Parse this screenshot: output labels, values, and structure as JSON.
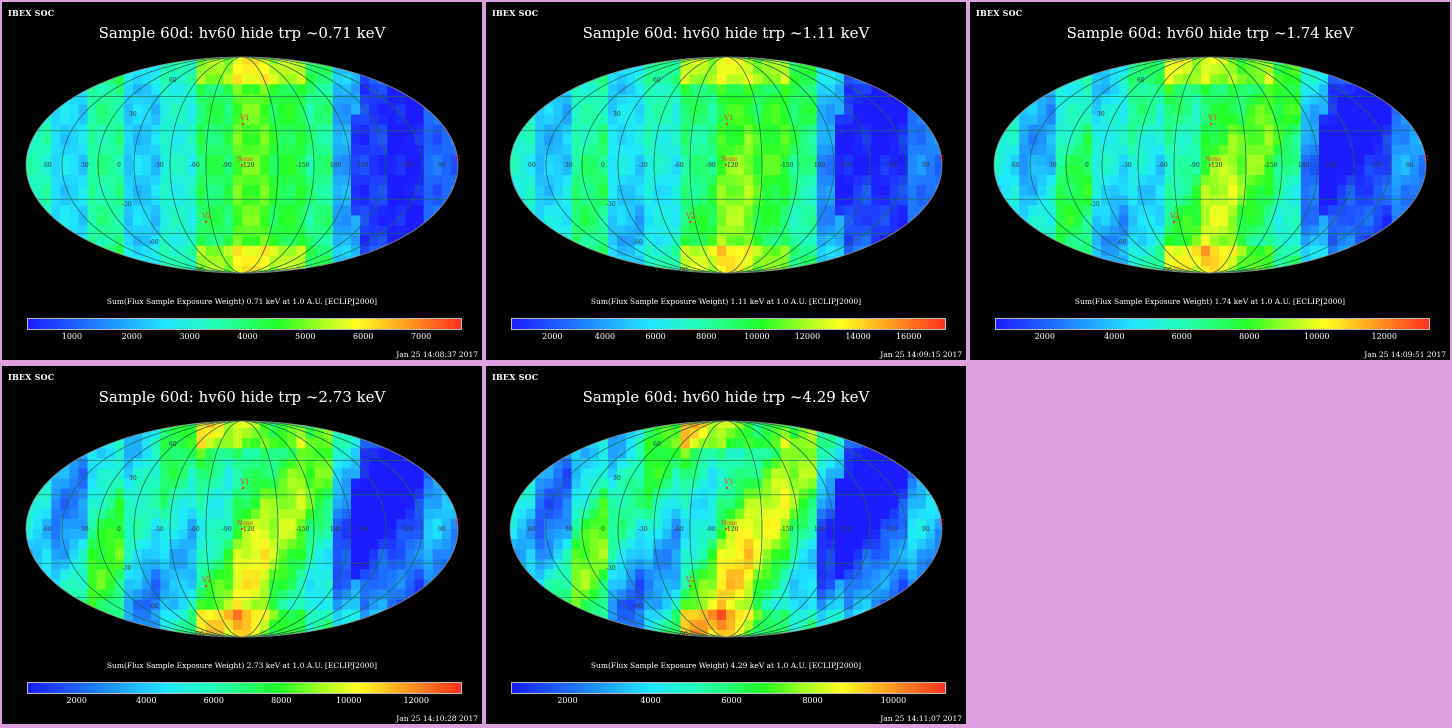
{
  "colors": {
    "background": "#dd9fdd",
    "panel": "#000000",
    "label_red": "#ff3333"
  },
  "panels": [
    {
      "brand": "IBEX SOC",
      "title": "Sample 60d: hv60 hide trp ~0.71 keV",
      "caption": "Sum(Flux Sample Exposure Weight)  0.71 keV at 1.0 A.U. [ECLIPJ2000]",
      "timestamp": "Jan 25 14:08:37 2017",
      "ticks": [
        "1000",
        "2000",
        "3000",
        "4000",
        "5000",
        "6000",
        "7000"
      ]
    },
    {
      "brand": "IBEX SOC",
      "title": "Sample 60d: hv60 hide trp ~1.11 keV",
      "caption": "Sum(Flux Sample Exposure Weight)  1.11 keV at 1.0 A.U. [ECLIPJ2000]",
      "timestamp": "Jan 25 14:09:15 2017",
      "ticks": [
        "2000",
        "4000",
        "6000",
        "8000",
        "10000",
        "12000",
        "14000",
        "16000"
      ]
    },
    {
      "brand": "IBEX SOC",
      "title": "Sample 60d: hv60 hide trp ~1.74 keV",
      "caption": "Sum(Flux Sample Exposure Weight)  1.74 keV at 1.0 A.U. [ECLIPJ2000]",
      "timestamp": "Jan 25 14:09:51 2017",
      "ticks": [
        "2000",
        "4000",
        "6000",
        "8000",
        "10000",
        "12000"
      ]
    },
    {
      "brand": "IBEX SOC",
      "title": "Sample 60d: hv60 hide trp ~2.73 keV",
      "caption": "Sum(Flux Sample Exposure Weight)  2.73 keV at 1.0 A.U. [ECLIPJ2000]",
      "timestamp": "Jan 25 14:10:28 2017",
      "ticks": [
        "2000",
        "4000",
        "6000",
        "8000",
        "10000",
        "12000"
      ]
    },
    {
      "brand": "IBEX SOC",
      "title": "Sample 60d: hv60 hide trp ~4.29 keV",
      "caption": "Sum(Flux Sample Exposure Weight)  4.29 keV at 1.0 A.U. [ECLIPJ2000]",
      "timestamp": "Jan 25 14:11:07 2017",
      "ticks": [
        "2000",
        "4000",
        "6000",
        "8000",
        "10000"
      ]
    }
  ],
  "map_labels": {
    "v1": "V1",
    "v2": "V2",
    "nose": "None",
    "tail": "Tail",
    "lon": [
      "60",
      "30",
      "0",
      "-30",
      "-60",
      "-90",
      "-120",
      "-150",
      "180",
      "150",
      "120",
      "90"
    ],
    "lat_n": "60",
    "lat_s": "-60",
    "lat_n30": "30",
    "lat_s30": "-30",
    "pole_s": "-90"
  },
  "chart_data": [
    {
      "type": "heatmap",
      "projection": "mollweide",
      "title": "Sample 60d: hv60 hide trp ~0.71 keV",
      "colorbar_ticks": [
        1000,
        2000,
        3000,
        4000,
        5000,
        6000,
        7000
      ]
    },
    {
      "type": "heatmap",
      "projection": "mollweide",
      "title": "Sample 60d: hv60 hide trp ~1.11 keV",
      "colorbar_ticks": [
        2000,
        4000,
        6000,
        8000,
        10000,
        12000,
        14000,
        16000
      ]
    },
    {
      "type": "heatmap",
      "projection": "mollweide",
      "title": "Sample 60d: hv60 hide trp ~1.74 keV",
      "colorbar_ticks": [
        2000,
        4000,
        6000,
        8000,
        10000,
        12000
      ]
    },
    {
      "type": "heatmap",
      "projection": "mollweide",
      "title": "Sample 60d: hv60 hide trp ~2.73 keV",
      "colorbar_ticks": [
        2000,
        4000,
        6000,
        8000,
        10000,
        12000
      ]
    },
    {
      "type": "heatmap",
      "projection": "mollweide",
      "title": "Sample 60d: hv60 hide trp ~4.29 keV",
      "colorbar_ticks": [
        2000,
        4000,
        6000,
        8000,
        10000
      ]
    }
  ]
}
